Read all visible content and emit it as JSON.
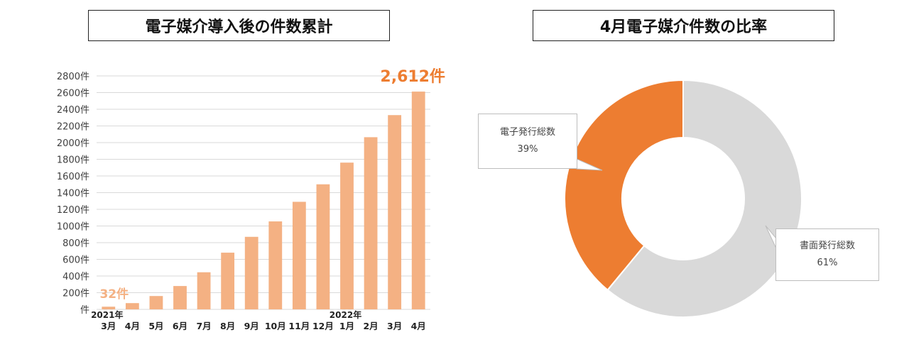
{
  "titles": {
    "left": "電子媒介導入後の件数累計",
    "right": "4月電子媒介件数の比率"
  },
  "chart_data": [
    {
      "type": "bar",
      "title": "電子媒介導入後の件数累計",
      "categories": [
        "3月",
        "4月",
        "5月",
        "6月",
        "7月",
        "8月",
        "9月",
        "10月",
        "11月",
        "12月",
        "1月",
        "2月",
        "3月",
        "4月"
      ],
      "year_labels": [
        {
          "index": 0,
          "label": "2021年"
        },
        {
          "index": 10,
          "label": "2022年"
        }
      ],
      "values": [
        32,
        75,
        160,
        280,
        445,
        680,
        870,
        1055,
        1290,
        1500,
        1760,
        2065,
        2330,
        2612
      ],
      "y_ticks": [
        "件",
        "200件",
        "400件",
        "600件",
        "800件",
        "1000件",
        "1200件",
        "1400件",
        "1600件",
        "1800件",
        "2000件",
        "2200件",
        "2400件",
        "2600件",
        "2800件"
      ],
      "ylim": [
        0,
        2800
      ],
      "grid": true,
      "annotations": {
        "first": "32件",
        "last": "2,612件"
      },
      "colors": {
        "bar": "#f4b183",
        "annotation": "#ed7d31",
        "grid": "#d9d9d9"
      }
    },
    {
      "type": "pie",
      "title": "4月電子媒介件数の比率",
      "donut": true,
      "slices": [
        {
          "label": "電子発行総数",
          "value": 39,
          "display": "39%",
          "color": "#ed7d31"
        },
        {
          "label": "書面発行総数",
          "value": 61,
          "display": "61%",
          "color": "#d9d9d9"
        }
      ]
    }
  ]
}
